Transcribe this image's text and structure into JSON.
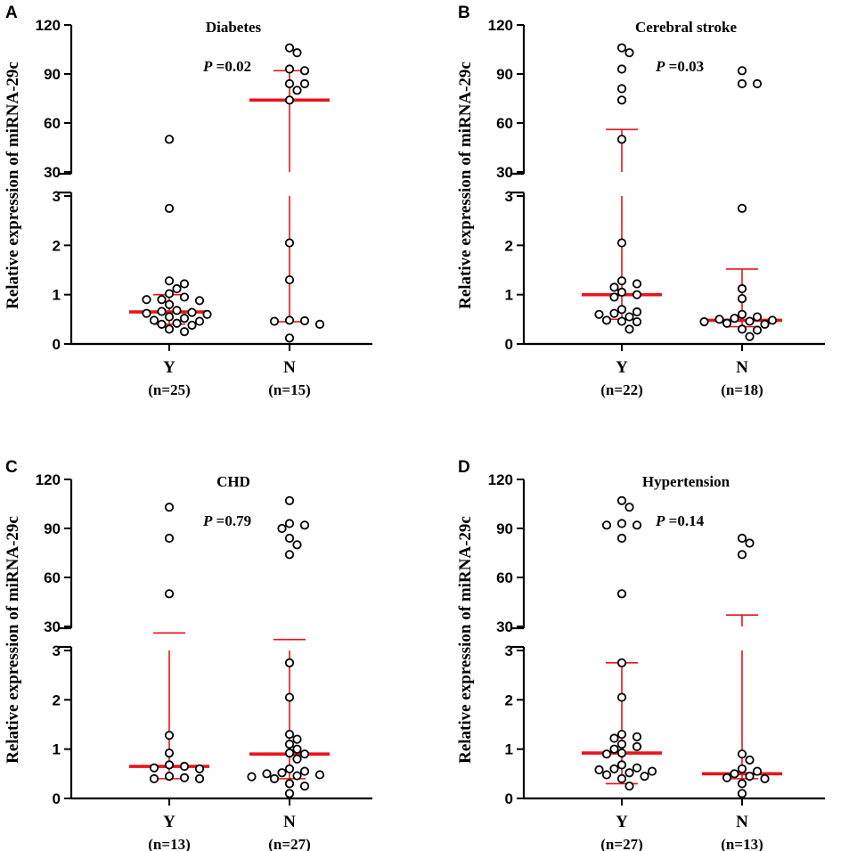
{
  "figure": {
    "ylabel": "Relative expression of miRNA-29c",
    "upper_ticks": [
      "30",
      "60",
      "90",
      "120"
    ],
    "lower_ticks": [
      "0",
      "1",
      "2",
      "3"
    ]
  },
  "chart_data": [
    {
      "type": "scatter",
      "panel_letter": "A",
      "title": "Diabetes",
      "p_label": "P",
      "p_value": " =0.02",
      "ylabel": "Relative expression of miRNA-29c",
      "y_axis_break": {
        "lower_range": [
          0,
          3
        ],
        "upper_range": [
          30,
          120
        ]
      },
      "groups": [
        {
          "label": "Y",
          "n_label": "(n=25)",
          "median": 0.65,
          "error_low": 0.4,
          "error_high": 1.0,
          "values": [
            50,
            2.75,
            1.28,
            1.22,
            1.12,
            1.02,
            0.95,
            0.9,
            0.9,
            0.88,
            0.8,
            0.68,
            0.66,
            0.64,
            0.62,
            0.6,
            0.55,
            0.52,
            0.48,
            0.46,
            0.42,
            0.4,
            0.38,
            0.3,
            0.25
          ]
        },
        {
          "label": "N",
          "n_label": "(n=15)",
          "median": 74,
          "error_low": 0.45,
          "error_high": 92,
          "values": [
            106,
            103,
            93,
            92,
            84,
            84,
            80,
            74,
            2.05,
            1.3,
            0.48,
            0.47,
            0.46,
            0.4,
            0.12
          ]
        }
      ]
    },
    {
      "type": "scatter",
      "panel_letter": "B",
      "title": "Cerebral stroke",
      "p_label": "P",
      "p_value": " =0.03",
      "ylabel": "Relative expression of miRNA-29c",
      "y_axis_break": {
        "lower_range": [
          0,
          3
        ],
        "upper_range": [
          30,
          120
        ]
      },
      "groups": [
        {
          "label": "Y",
          "n_label": "(n=22)",
          "median": 1.0,
          "error_low": 0.5,
          "error_high": 56,
          "values": [
            106,
            103,
            93,
            81,
            74,
            50,
            2.05,
            1.28,
            1.22,
            1.15,
            1.05,
            1.0,
            0.95,
            0.7,
            0.65,
            0.62,
            0.6,
            0.55,
            0.48,
            0.46,
            0.45,
            0.3
          ]
        },
        {
          "label": "N",
          "n_label": "(n=18)",
          "median": 0.48,
          "error_low": 0.35,
          "error_high": 1.52,
          "values": [
            92,
            84,
            84,
            2.75,
            1.12,
            0.92,
            0.6,
            0.55,
            0.52,
            0.5,
            0.48,
            0.46,
            0.45,
            0.42,
            0.4,
            0.3,
            0.28,
            0.15
          ]
        }
      ]
    },
    {
      "type": "scatter",
      "panel_letter": "C",
      "title": "CHD",
      "p_label": "P",
      "p_value": " =0.79",
      "ylabel": "Relative expression of miRNA-29c",
      "y_axis_break": {
        "lower_range": [
          0,
          3
        ],
        "upper_range": [
          30,
          120
        ]
      },
      "groups": [
        {
          "label": "Y",
          "n_label": "(n=13)",
          "median": 0.65,
          "error_low": 0.4,
          "error_high": 26,
          "values": [
            103,
            84,
            50,
            1.28,
            0.92,
            0.68,
            0.65,
            0.62,
            0.6,
            0.45,
            0.42,
            0.4,
            0.4
          ]
        },
        {
          "label": "N",
          "n_label": "(n=27)",
          "median": 0.9,
          "error_low": 0.4,
          "error_high": 22,
          "values": [
            107,
            93,
            92,
            90,
            84,
            80,
            74,
            2.75,
            2.05,
            1.3,
            1.2,
            1.1,
            1.0,
            0.92,
            0.9,
            0.8,
            0.6,
            0.55,
            0.52,
            0.5,
            0.48,
            0.46,
            0.44,
            0.4,
            0.3,
            0.25,
            0.1
          ]
        }
      ]
    },
    {
      "type": "scatter",
      "panel_letter": "D",
      "title": "Hypertension",
      "p_label": "P",
      "p_value": " =0.14",
      "ylabel": "Relative expression of miRNA-29c",
      "y_axis_break": {
        "lower_range": [
          0,
          3
        ],
        "upper_range": [
          30,
          120
        ]
      },
      "groups": [
        {
          "label": "Y",
          "n_label": "(n=27)",
          "median": 0.92,
          "error_low": 0.3,
          "error_high": 2.75,
          "values": [
            107,
            103,
            93,
            92,
            92,
            84,
            50,
            2.75,
            2.05,
            1.3,
            1.25,
            1.22,
            1.1,
            1.05,
            1.0,
            0.92,
            0.9,
            0.68,
            0.62,
            0.6,
            0.58,
            0.55,
            0.52,
            0.48,
            0.45,
            0.4,
            0.25
          ]
        },
        {
          "label": "N",
          "n_label": "(n=13)",
          "median": 0.5,
          "error_low": 0.4,
          "error_high": 37,
          "values": [
            84,
            81,
            74,
            0.9,
            0.78,
            0.6,
            0.55,
            0.5,
            0.45,
            0.42,
            0.4,
            0.3,
            0.1
          ]
        }
      ]
    }
  ]
}
